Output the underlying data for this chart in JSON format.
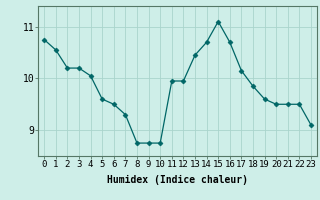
{
  "x": [
    0,
    1,
    2,
    3,
    4,
    5,
    6,
    7,
    8,
    9,
    10,
    11,
    12,
    13,
    14,
    15,
    16,
    17,
    18,
    19,
    20,
    21,
    22,
    23
  ],
  "y": [
    10.75,
    10.55,
    10.2,
    10.2,
    10.05,
    9.6,
    9.5,
    9.3,
    8.75,
    8.75,
    8.75,
    9.95,
    9.95,
    10.45,
    10.7,
    11.1,
    10.7,
    10.15,
    9.85,
    9.6,
    9.5,
    9.5,
    9.5,
    9.1
  ],
  "line_color": "#006666",
  "marker": "D",
  "marker_size": 2.5,
  "background_color": "#ceeee8",
  "grid_color": "#aad4cc",
  "axis_bg": "#ceeee8",
  "xlabel": "Humidex (Indice chaleur)",
  "ylim": [
    8.5,
    11.4
  ],
  "xlim": [
    -0.5,
    23.5
  ],
  "yticks": [
    9,
    10,
    11
  ],
  "xticks": [
    0,
    1,
    2,
    3,
    4,
    5,
    6,
    7,
    8,
    9,
    10,
    11,
    12,
    13,
    14,
    15,
    16,
    17,
    18,
    19,
    20,
    21,
    22,
    23
  ],
  "label_fontsize": 7,
  "tick_fontsize": 6.5
}
